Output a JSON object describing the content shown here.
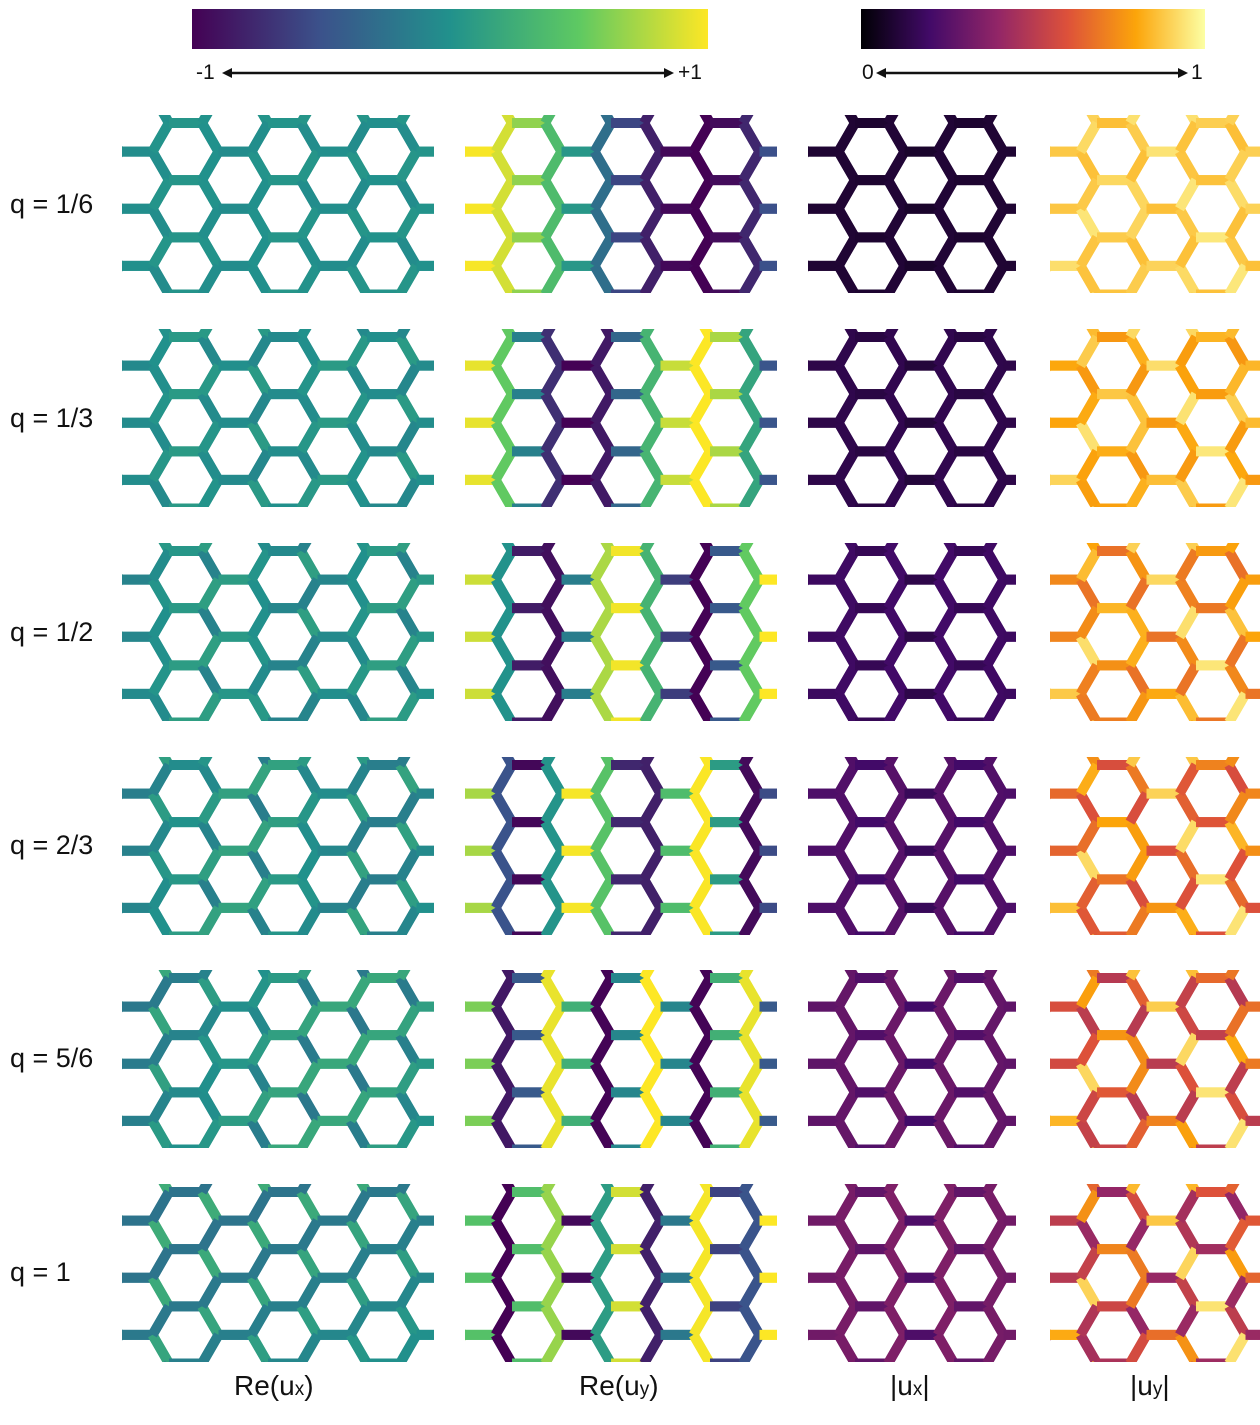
{
  "colorbars": [
    {
      "name": "viridis",
      "min_label": "-1",
      "max_label": "+1",
      "stops": [
        "#440154",
        "#3b528b",
        "#21918c",
        "#5ec962",
        "#fde725"
      ]
    },
    {
      "name": "inferno",
      "min_label": "0",
      "max_label": "1",
      "stops": [
        "#000004",
        "#420a68",
        "#932667",
        "#dd513a",
        "#fca50a",
        "#fcffa4"
      ]
    }
  ],
  "rows": [
    {
      "label": "q = 1/6",
      "q": 0.1667
    },
    {
      "label": "q = 1/3",
      "q": 0.3333
    },
    {
      "label": "q = 1/2",
      "q": 0.5
    },
    {
      "label": "q = 2/3",
      "q": 0.6667
    },
    {
      "label": "q = 5/6",
      "q": 0.8333
    },
    {
      "label": "q = 1",
      "q": 1.0
    }
  ],
  "columns": [
    {
      "main": "Re(u",
      "sub": "x",
      "close": ")",
      "colormap": "viridis"
    },
    {
      "main": "Re(u",
      "sub": "y",
      "close": ")",
      "colormap": "viridis"
    },
    {
      "main": "|u",
      "sub": "x",
      "close": "|",
      "colormap": "inferno"
    },
    {
      "main": "|u",
      "sub": "y",
      "close": "|",
      "colormap": "inferno"
    }
  ]
}
